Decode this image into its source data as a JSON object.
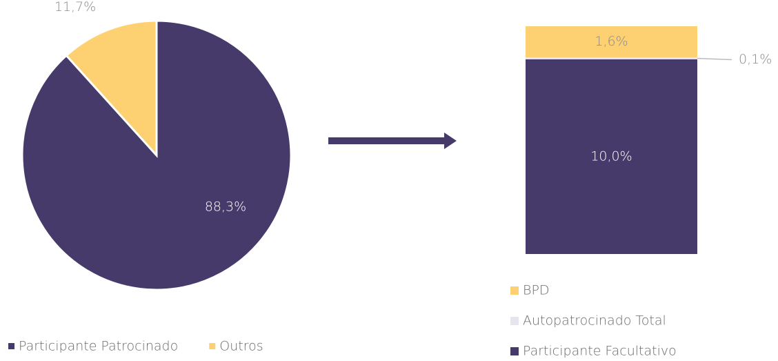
{
  "chart_data": [
    {
      "type": "pie",
      "categories": [
        "Participante Patrocinado",
        "Outros"
      ],
      "values": [
        88.3,
        11.7
      ],
      "value_labels": [
        "88,3%",
        "11,7%"
      ],
      "colors": [
        "#463a6b",
        "#fdd172"
      ]
    },
    {
      "type": "stacked_bar",
      "ylim": [
        0,
        11.7
      ],
      "series": [
        {
          "name": "Participante Facultativo",
          "color": "#463a6b",
          "values": [
            10.0
          ],
          "value_labels": [
            "10,0%"
          ]
        },
        {
          "name": "Autopatrocinado Total",
          "color": "#e6e5ee",
          "values": [
            0.1
          ],
          "value_labels": [
            "0,1%"
          ]
        },
        {
          "name": "BPD",
          "color": "#fdd172",
          "values": [
            1.6
          ],
          "value_labels": [
            "1,6%"
          ]
        }
      ]
    }
  ]
}
